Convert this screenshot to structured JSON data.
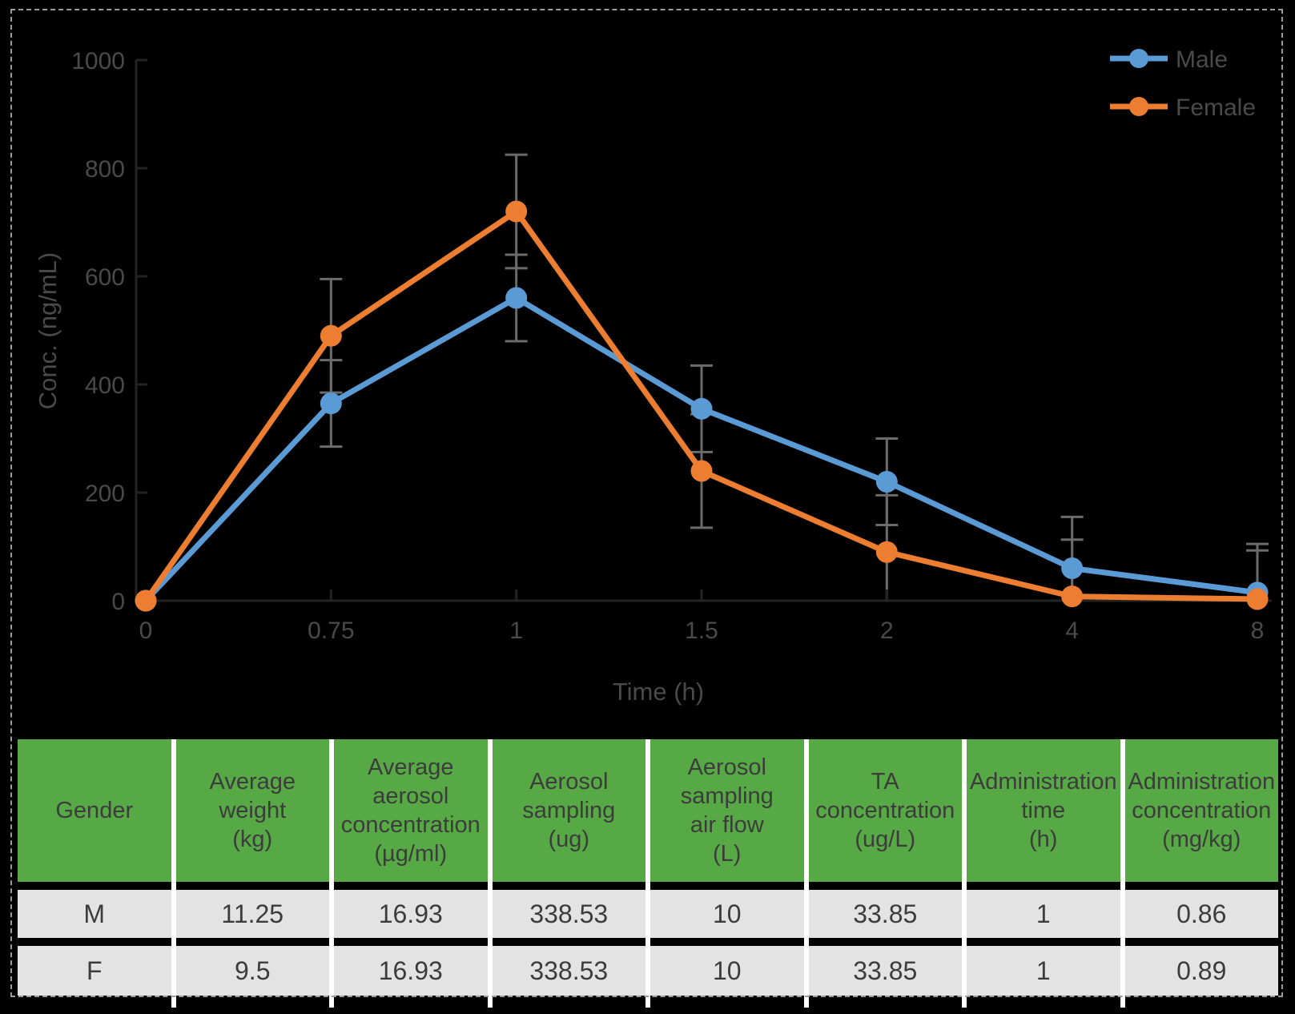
{
  "colors": {
    "background": "#000000",
    "axis": "#232323",
    "axis_text": "#4a4a4a",
    "error_bar": "#6b6b6b",
    "male": "#5B9BD5",
    "female": "#ED7D31",
    "table_header_bg": "#56a944",
    "table_row_bg": "#e4e3e3",
    "table_text": "#3c3c3c",
    "separator": "#ffffff",
    "border_dash": "#9c9c9c"
  },
  "chart_data": {
    "type": "line",
    "title": "",
    "xlabel": "Time (h)",
    "ylabel": "Conc. (ng/mL)",
    "categories": [
      "0",
      "0.75",
      "1",
      "1.5",
      "2",
      "4",
      "8"
    ],
    "y_ticks": [
      "0",
      "200",
      "400",
      "600",
      "800",
      "1000"
    ],
    "ylim": [
      0,
      1000
    ],
    "grid": false,
    "legend_position": "top-right",
    "error_bars": true,
    "series": [
      {
        "name": "Male",
        "color": "#5B9BD5",
        "values": [
          0,
          365,
          560,
          355,
          220,
          60,
          15
        ],
        "error": [
          0,
          80,
          80,
          80,
          80,
          95,
          90
        ]
      },
      {
        "name": "Female",
        "color": "#ED7D31",
        "values": [
          0,
          490,
          720,
          240,
          90,
          8,
          3
        ],
        "error": [
          0,
          105,
          105,
          105,
          105,
          105,
          90
        ]
      }
    ]
  },
  "table": {
    "columns": [
      [
        "Gender"
      ],
      [
        "Average",
        "weight",
        "(kg)"
      ],
      [
        "Average",
        "aerosol",
        "concentration",
        "(µg/ml)"
      ],
      [
        "Aerosol",
        "sampling",
        "(ug)"
      ],
      [
        "Aerosol",
        "sampling",
        "air flow",
        "(L)"
      ],
      [
        "TA",
        "concentration",
        "(ug/L)"
      ],
      [
        "Administration",
        "time",
        "(h)"
      ],
      [
        "Administration",
        "concentration",
        "(mg/kg)"
      ]
    ],
    "rows": [
      {
        "cells": [
          "M",
          "11.25",
          "16.93",
          "338.53",
          "10",
          "33.85",
          "1",
          "0.86"
        ]
      },
      {
        "cells": [
          "F",
          "9.5",
          "16.93",
          "338.53",
          "10",
          "33.85",
          "1",
          "0.89"
        ]
      }
    ]
  }
}
